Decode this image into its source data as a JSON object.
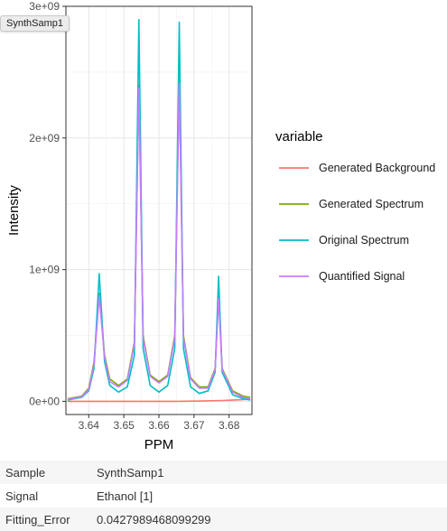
{
  "tooltip": "SynthSamp1",
  "chart_data": {
    "type": "line",
    "xlabel": "PPM",
    "ylabel": "Intensity",
    "xlim": [
      3.6335,
      3.6865
    ],
    "ylim": [
      -100000000,
      3000000000
    ],
    "x_ticks": [
      3.64,
      3.65,
      3.66,
      3.67,
      3.68
    ],
    "x_tick_labels": [
      "3.64",
      "3.65",
      "3.66",
      "3.67",
      "3.68"
    ],
    "y_ticks": [
      0,
      1000000000,
      2000000000,
      3000000000
    ],
    "y_tick_labels": [
      "0e+00",
      "1e+09",
      "2e+09",
      "3e+09"
    ],
    "legend_title": "variable",
    "legend_position": "right",
    "grid": true,
    "series": [
      {
        "name": "Generated Background",
        "color": "#F8766D",
        "points": [
          [
            3.634,
            0
          ],
          [
            3.645,
            0
          ],
          [
            3.655,
            0
          ],
          [
            3.665,
            0
          ],
          [
            3.672,
            2000000
          ],
          [
            3.678,
            6000000
          ],
          [
            3.683,
            12000000
          ],
          [
            3.686,
            16000000
          ]
        ]
      },
      {
        "name": "Generated Spectrum",
        "color": "#7CAE00",
        "points": [
          [
            3.634,
            20000000
          ],
          [
            3.638,
            40000000
          ],
          [
            3.64,
            100000000
          ],
          [
            3.6415,
            300000000
          ],
          [
            3.643,
            820000000
          ],
          [
            3.6445,
            350000000
          ],
          [
            3.646,
            170000000
          ],
          [
            3.6485,
            120000000
          ],
          [
            3.651,
            170000000
          ],
          [
            3.653,
            450000000
          ],
          [
            3.6543,
            2400000000
          ],
          [
            3.6555,
            500000000
          ],
          [
            3.6575,
            200000000
          ],
          [
            3.66,
            150000000
          ],
          [
            3.6625,
            200000000
          ],
          [
            3.6645,
            500000000
          ],
          [
            3.6658,
            2450000000
          ],
          [
            3.667,
            500000000
          ],
          [
            3.669,
            180000000
          ],
          [
            3.6715,
            110000000
          ],
          [
            3.674,
            110000000
          ],
          [
            3.676,
            250000000
          ],
          [
            3.677,
            800000000
          ],
          [
            3.678,
            250000000
          ],
          [
            3.681,
            80000000
          ],
          [
            3.684,
            40000000
          ],
          [
            3.686,
            30000000
          ]
        ]
      },
      {
        "name": "Original Spectrum",
        "color": "#00BFC4",
        "points": [
          [
            3.634,
            10000000
          ],
          [
            3.638,
            30000000
          ],
          [
            3.64,
            80000000
          ],
          [
            3.6415,
            250000000
          ],
          [
            3.643,
            970000000
          ],
          [
            3.6445,
            300000000
          ],
          [
            3.646,
            120000000
          ],
          [
            3.6485,
            70000000
          ],
          [
            3.651,
            110000000
          ],
          [
            3.653,
            350000000
          ],
          [
            3.6543,
            2900000000
          ],
          [
            3.6555,
            400000000
          ],
          [
            3.6575,
            120000000
          ],
          [
            3.66,
            70000000
          ],
          [
            3.6625,
            120000000
          ],
          [
            3.6645,
            400000000
          ],
          [
            3.6658,
            2880000000
          ],
          [
            3.667,
            400000000
          ],
          [
            3.669,
            110000000
          ],
          [
            3.6715,
            60000000
          ],
          [
            3.674,
            80000000
          ],
          [
            3.676,
            220000000
          ],
          [
            3.677,
            950000000
          ],
          [
            3.678,
            220000000
          ],
          [
            3.681,
            50000000
          ],
          [
            3.684,
            20000000
          ],
          [
            3.686,
            10000000
          ]
        ]
      },
      {
        "name": "Quantified Signal",
        "color": "#C77CFF",
        "points": [
          [
            3.634,
            15000000
          ],
          [
            3.638,
            35000000
          ],
          [
            3.64,
            90000000
          ],
          [
            3.6415,
            280000000
          ],
          [
            3.643,
            800000000
          ],
          [
            3.6445,
            330000000
          ],
          [
            3.646,
            150000000
          ],
          [
            3.6485,
            110000000
          ],
          [
            3.651,
            160000000
          ],
          [
            3.653,
            430000000
          ],
          [
            3.6543,
            2380000000
          ],
          [
            3.6555,
            480000000
          ],
          [
            3.6575,
            190000000
          ],
          [
            3.66,
            140000000
          ],
          [
            3.6625,
            190000000
          ],
          [
            3.6645,
            480000000
          ],
          [
            3.6658,
            2420000000
          ],
          [
            3.667,
            480000000
          ],
          [
            3.669,
            170000000
          ],
          [
            3.6715,
            100000000
          ],
          [
            3.674,
            100000000
          ],
          [
            3.676,
            240000000
          ],
          [
            3.677,
            780000000
          ],
          [
            3.678,
            240000000
          ],
          [
            3.681,
            70000000
          ],
          [
            3.684,
            30000000
          ],
          [
            3.686,
            20000000
          ]
        ]
      }
    ]
  },
  "info": {
    "rows": [
      {
        "key": "Sample",
        "value": "SynthSamp1"
      },
      {
        "key": "Signal",
        "value": "Ethanol [1]"
      },
      {
        "key": "Fitting_Error",
        "value": "0.0427989468099299"
      }
    ]
  }
}
